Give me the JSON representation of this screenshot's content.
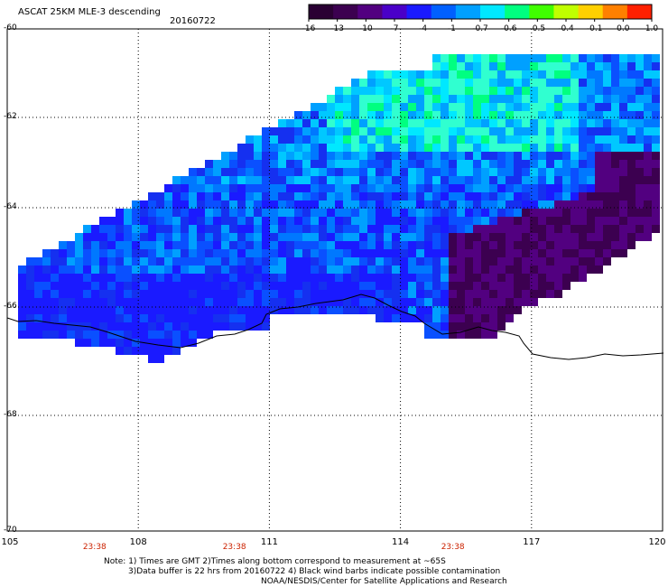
{
  "header": {
    "title": "ASCAT 25KM MLE-3 descending",
    "date": "20160722"
  },
  "colorbar": {
    "labels": [
      "-16",
      "-13",
      "-10",
      "-7",
      "-4",
      "-1",
      "-0.7",
      "-0.6",
      "-0.5",
      "-0.4",
      "-0.1",
      "0.0",
      "1.0"
    ],
    "colors": [
      "#2a0033",
      "#3c0050",
      "#520080",
      "#4a00c8",
      "#1a1aff",
      "#0060ff",
      "#00a0ff",
      "#00e8ff",
      "#00ff80",
      "#40ff00",
      "#c0ff00",
      "#ffd000",
      "#ff8000",
      "#ff2000"
    ]
  },
  "map": {
    "lat_labels": [
      "-60",
      "-62",
      "-64",
      "-66",
      "-68",
      "-70"
    ],
    "lon_labels": [
      "105",
      "108",
      "111",
      "114",
      "117",
      "120"
    ],
    "lon_range": [
      105,
      120
    ],
    "lat_range": [
      -60,
      -70
    ],
    "pass_times": [
      "23:38",
      "23:38",
      "23:38"
    ],
    "pass_time_lons": [
      107,
      110.2,
      115.2
    ]
  },
  "notes": {
    "line1": "Note: 1) Times are GMT 2)Times along bottom correspond to measurement at ~65S",
    "line2": "3)Data buffer is 22 hrs from 20160722 4) Black wind barbs indicate possible contamination",
    "line3": "NOAA/NESDIS/Center for Satellite Applications and Research"
  }
}
